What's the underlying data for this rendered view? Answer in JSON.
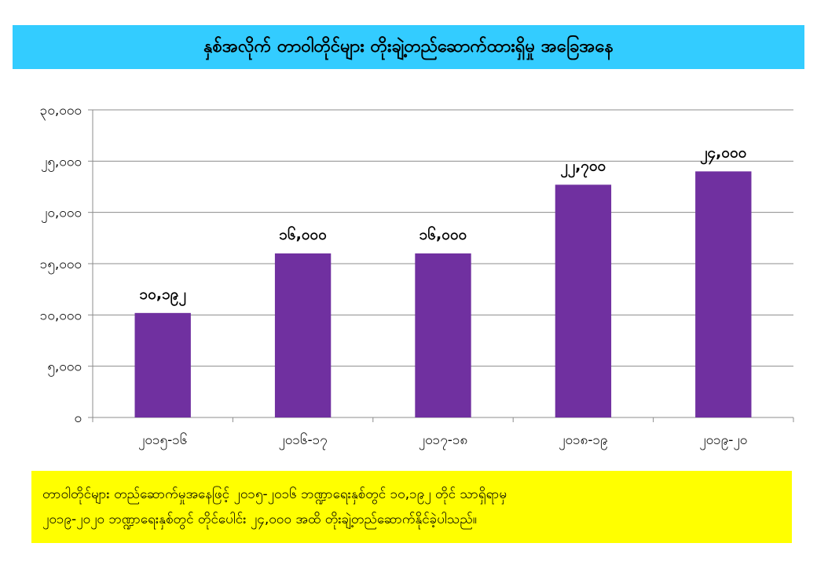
{
  "header": {
    "title": "နှစ်အလိုက် တာဝါတိုင်များ တိုးချဲ့တည်ဆောက်ထားရှိမှု အခြေအနေ"
  },
  "chart_data": {
    "type": "bar",
    "categories": [
      "၂၀၁၅-၁၆",
      "၂၀၁၆-၁၇",
      "၂၀၁၇-၁၈",
      "၂၀၁၈-၁၉",
      "၂၀၁၉-၂၀"
    ],
    "values": [
      10192,
      16000,
      16000,
      22700,
      24000
    ],
    "value_labels": [
      "၁၀,၁၉၂",
      "၁၆,၀၀၀",
      "၁၆,၀၀၀",
      "၂၂,၇၀၀",
      "၂၄,၀၀၀"
    ],
    "ylim": [
      0,
      30000
    ],
    "yticks": [
      0,
      5000,
      10000,
      15000,
      20000,
      25000,
      30000
    ],
    "ytick_labels": [
      "၀",
      "၅,၀၀၀",
      "၁၀,၀၀၀",
      "၁၅,၀၀၀",
      "၂၀,၀၀၀",
      "၂၅,၀၀၀",
      "၃၀,၀၀၀"
    ],
    "grid": true,
    "bar_color": "#7030a0",
    "xlabel": "",
    "ylabel": ""
  },
  "note": {
    "line1": "တာဝါတိုင်များ တည်ဆောက်မှုအနေဖြင့် ၂၀၁၅-၂၀၁၆ ဘဏ္ဍာရေးနှစ်တွင် ၁၀,၁၉၂ တိုင် သာရှိရာမှ",
    "line2": "၂၀၁၉-၂၀၂၀ ဘဏ္ဍာရေးနှစ်တွင် တိုင်ပေါင်း ၂၄,၀၀၀ အထိ တိုးချဲ့တည်ဆောက်နိုင်ခဲ့ပါသည်။"
  },
  "colors": {
    "title_bg": "#33ccff",
    "note_bg": "#ffff00",
    "bar": "#7030a0"
  }
}
